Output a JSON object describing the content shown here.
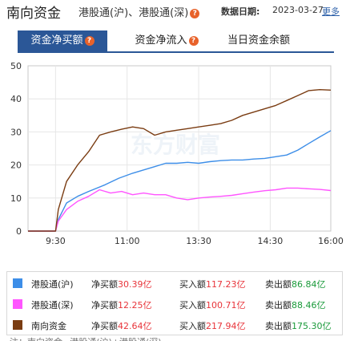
{
  "header": {
    "title": "南向资金",
    "subtitle": "港股通(沪)、港股通(深)",
    "date_label": "数据日期:",
    "date_value": "2023-03-27",
    "more_label": "更多"
  },
  "tabs": [
    {
      "label": "资金净买额",
      "active": true,
      "has_help": true
    },
    {
      "label": "资金净流入",
      "active": false,
      "has_help": true
    },
    {
      "label": "当日资金余额",
      "active": false,
      "has_help": false
    }
  ],
  "watermark": "东方财富",
  "chart_data": {
    "type": "line",
    "title": "",
    "xlabel": "",
    "ylabel": "",
    "ylim": [
      0,
      50
    ],
    "yticks": [
      0,
      10,
      20,
      30,
      40,
      50
    ],
    "xticks": [
      "9:30",
      "11:00",
      "13:30",
      "14:30",
      "16:00"
    ],
    "grid": true,
    "series": [
      {
        "name": "港股通(沪)",
        "color": "#3d8ee8",
        "x": [
          0,
          10,
          11,
          14,
          18,
          22,
          28,
          33,
          38,
          42,
          46,
          50,
          54,
          58,
          62,
          66,
          70,
          74,
          78,
          82,
          86,
          90,
          94,
          98,
          102,
          106,
          110
        ],
        "values": [
          0,
          0,
          3.5,
          8.5,
          10.5,
          12,
          14,
          16,
          17.5,
          18.5,
          19.5,
          20.5,
          20.5,
          20.8,
          20.5,
          21,
          21.3,
          21.5,
          21.5,
          21.8,
          22,
          22.5,
          23,
          24.5,
          26.5,
          28.5,
          30.4
        ]
      },
      {
        "name": "港股通(深)",
        "color": "#ff55ff",
        "x": [
          0,
          10,
          11,
          14,
          18,
          22,
          26,
          30,
          34,
          38,
          42,
          46,
          50,
          54,
          58,
          62,
          66,
          70,
          74,
          78,
          82,
          86,
          90,
          94,
          98,
          102,
          106,
          110
        ],
        "values": [
          0,
          0,
          3,
          6.5,
          9,
          10.5,
          12.5,
          11.5,
          12,
          11,
          11.5,
          11,
          11,
          10,
          9.5,
          10,
          10.3,
          10.5,
          10.8,
          11.3,
          11.8,
          12.2,
          12.5,
          13,
          13,
          12.8,
          12.6,
          12.25
        ]
      },
      {
        "name": "南向资金",
        "color": "#7a3c12",
        "x": [
          0,
          10,
          11,
          14,
          18,
          22,
          26,
          30,
          34,
          38,
          42,
          46,
          50,
          54,
          58,
          62,
          66,
          70,
          74,
          78,
          82,
          86,
          90,
          94,
          98,
          102,
          106,
          110
        ],
        "values": [
          0,
          0,
          6.5,
          15,
          20,
          24,
          29,
          30,
          30.8,
          31.5,
          31,
          29,
          30,
          30.5,
          31,
          31.5,
          32,
          32.5,
          33.5,
          35,
          36,
          37,
          38,
          39.5,
          41,
          42.5,
          42.8,
          42.64
        ]
      }
    ],
    "x_domain": [
      0,
      110
    ]
  },
  "legend": [
    {
      "name": "港股通(沪)",
      "color": "#3d8ee8",
      "net_label": "净买额",
      "net_value": "30.39亿",
      "buy_label": "买入额",
      "buy_value": "117.23亿",
      "sell_label": "卖出额",
      "sell_value": "86.84亿"
    },
    {
      "name": "港股通(深)",
      "color": "#ff55ff",
      "net_label": "净买额",
      "net_value": "12.25亿",
      "buy_label": "买入额",
      "buy_value": "100.71亿",
      "sell_label": "卖出额",
      "sell_value": "88.46亿"
    },
    {
      "name": "南向资金",
      "color": "#7a3c12",
      "net_label": "净买额",
      "net_value": "42.64亿",
      "buy_label": "买入额",
      "buy_value": "217.94亿",
      "sell_label": "卖出额",
      "sell_value": "175.30亿"
    }
  ],
  "footer_note": "注：南向资金=港股通(沪)+港股通(深)"
}
